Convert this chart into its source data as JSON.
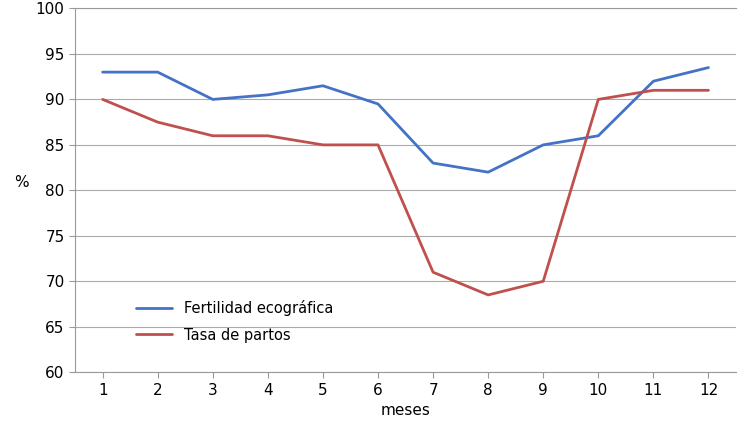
{
  "months": [
    1,
    2,
    3,
    4,
    5,
    6,
    7,
    8,
    9,
    10,
    11,
    12
  ],
  "fertilidad": [
    93,
    93,
    90,
    90.5,
    91.5,
    89.5,
    83,
    82,
    85,
    86,
    92,
    93.5
  ],
  "tasa_partos": [
    90,
    87.5,
    86,
    86,
    85,
    85,
    71,
    68.5,
    70,
    90,
    91,
    91
  ],
  "color_fertilidad": "#4472C4",
  "color_tasa": "#C0504D",
  "legend_fertilidad": "Fertilidad ecográfica",
  "legend_tasa": "Tasa de partos",
  "xlabel": "meses",
  "ylabel": "%",
  "ylim": [
    60,
    100
  ],
  "yticks": [
    60,
    65,
    70,
    75,
    80,
    85,
    90,
    95,
    100
  ],
  "xlim": [
    0.5,
    12.5
  ],
  "xticks": [
    1,
    2,
    3,
    4,
    5,
    6,
    7,
    8,
    9,
    10,
    11,
    12
  ],
  "linewidth": 2.0,
  "grid_color": "#AAAAAA",
  "bg_color": "#FFFFFF",
  "tick_fontsize": 11,
  "label_fontsize": 11
}
